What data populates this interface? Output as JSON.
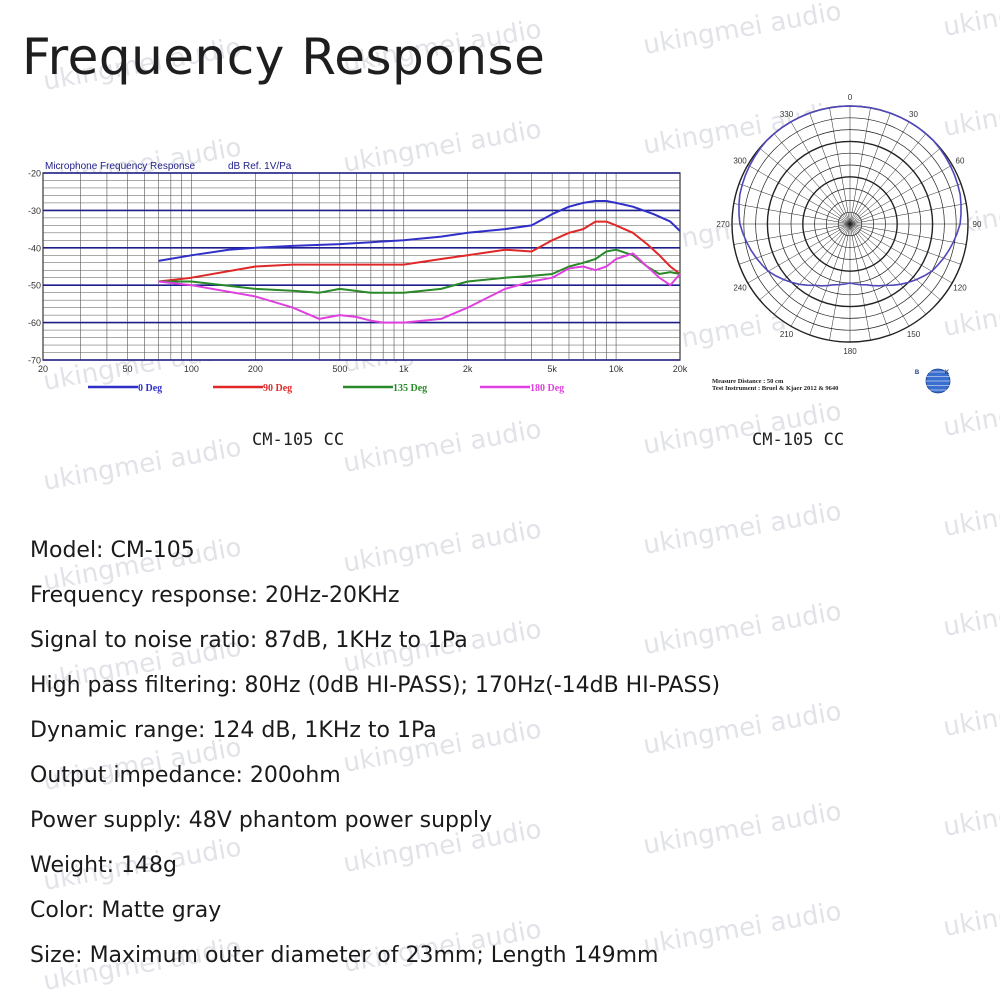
{
  "page": {
    "title": "Frequency Response"
  },
  "watermark": {
    "text": "ukingmei audio"
  },
  "captions": {
    "frequency": "CM-105 CC",
    "polar": "CM-105 CC"
  },
  "polar": {
    "note_line1": "Measure Distance : 50 cm",
    "note_line2": "Test Instrument : Bruel & Kjaer 2012 & 9640",
    "logo_text": "B K",
    "angle_labels": [
      "0",
      "30",
      "60",
      "90",
      "120",
      "150",
      "180",
      "210",
      "240",
      "270",
      "300",
      "330"
    ],
    "colors": {
      "pattern": "#5048b8",
      "grid": "#222222"
    },
    "pattern_db": {
      "angles": [
        0,
        15,
        30,
        45,
        60,
        75,
        90,
        105,
        120,
        135,
        150,
        165,
        180,
        195,
        210,
        225,
        240,
        255,
        270,
        285,
        300,
        315,
        330,
        345
      ],
      "values": [
        0,
        0,
        0,
        0,
        -0.5,
        -1,
        -2,
        -4,
        -6,
        -9,
        -12,
        -14,
        -15,
        -14,
        -12,
        -9,
        -6,
        -4,
        -2,
        -1,
        -0.5,
        0,
        0,
        0
      ]
    }
  },
  "chart_data": [
    {
      "type": "line",
      "title": "Microphone Frequency Response",
      "subtitle": "dB Ref. 1V/Pa",
      "xscale": "log",
      "xlim": [
        20,
        20000
      ],
      "ylim": [
        -70,
        -20
      ],
      "xticks": [
        20,
        50,
        100,
        200,
        500,
        1000,
        2000,
        5000,
        10000,
        20000
      ],
      "xtick_labels": [
        "20",
        "50",
        "100",
        "200",
        "500",
        "1k",
        "2k",
        "5k",
        "10k",
        "20k"
      ],
      "yticks": [
        -20,
        -30,
        -40,
        -50,
        -60,
        -70
      ],
      "grid": true,
      "legend_position": "bottom",
      "series": [
        {
          "name": "0 Deg",
          "color": "#3030c8",
          "x": [
            70,
            100,
            150,
            200,
            300,
            500,
            700,
            1000,
            1500,
            2000,
            3000,
            4000,
            5000,
            6000,
            7000,
            8000,
            9000,
            10000,
            12000,
            15000,
            18000,
            20000
          ],
          "y": [
            -43.5,
            -42,
            -40.5,
            -40,
            -39.5,
            -39,
            -38.5,
            -38,
            -37,
            -36,
            -35,
            -34,
            -31,
            -29,
            -28,
            -27.5,
            -27.5,
            -28,
            -29,
            -31,
            -33,
            -35.5
          ]
        },
        {
          "name": "90 Deg",
          "color": "#e02828",
          "x": [
            70,
            100,
            200,
            300,
            500,
            700,
            1000,
            1500,
            2000,
            3000,
            4000,
            5000,
            6000,
            7000,
            8000,
            9000,
            10000,
            12000,
            14000,
            16000,
            18000,
            20000
          ],
          "y": [
            -49,
            -48,
            -45,
            -44.5,
            -44.5,
            -44.5,
            -44.5,
            -43,
            -42,
            -40.5,
            -41,
            -38,
            -36,
            -35,
            -33,
            -33,
            -34,
            -36,
            -39,
            -42,
            -45,
            -47
          ]
        },
        {
          "name": "135 Deg",
          "color": "#2a8a2a",
          "x": [
            70,
            100,
            200,
            300,
            400,
            500,
            700,
            1000,
            1500,
            2000,
            3000,
            4000,
            5000,
            6000,
            7000,
            8000,
            9000,
            10000,
            12000,
            14000,
            16000,
            18000,
            20000
          ],
          "y": [
            -49,
            -49,
            -51,
            -51.5,
            -52,
            -51,
            -52,
            -52,
            -51,
            -49,
            -48,
            -47.5,
            -47,
            -45,
            -44,
            -43,
            -41,
            -40.5,
            -42,
            -45,
            -47,
            -46.5,
            -47
          ]
        },
        {
          "name": "180 Deg",
          "color": "#e040e0",
          "x": [
            70,
            100,
            200,
            300,
            400,
            500,
            600,
            700,
            800,
            1000,
            1500,
            2000,
            3000,
            4000,
            5000,
            6000,
            7000,
            8000,
            9000,
            10000,
            12000,
            14000,
            16000,
            18000,
            20000
          ],
          "y": [
            -49,
            -50,
            -53,
            -56,
            -59,
            -58,
            -58.5,
            -59.5,
            -60,
            -60,
            -59,
            -56,
            -51,
            -49,
            -48,
            -45.5,
            -45,
            -46,
            -45,
            -43,
            -41.5,
            -45,
            -48,
            -50,
            -47
          ]
        }
      ]
    }
  ],
  "specs": [
    "Model: CM-105",
    "Frequency response: 20Hz-20KHz",
    "Signal to noise ratio: 87dB, 1KHz to 1Pa",
    "High pass filtering: 80Hz (0dB HI-PASS); 170Hz(-14dB HI-PASS)",
    "Dynamic range: 124 dB, 1KHz to 1Pa",
    "Output impedance: 200ohm",
    "Power supply: 48V phantom power supply",
    "Weight: 148g",
    "Color: Matte gray",
    "Size: Maximum outer diameter of 23mm; Length 149mm"
  ]
}
